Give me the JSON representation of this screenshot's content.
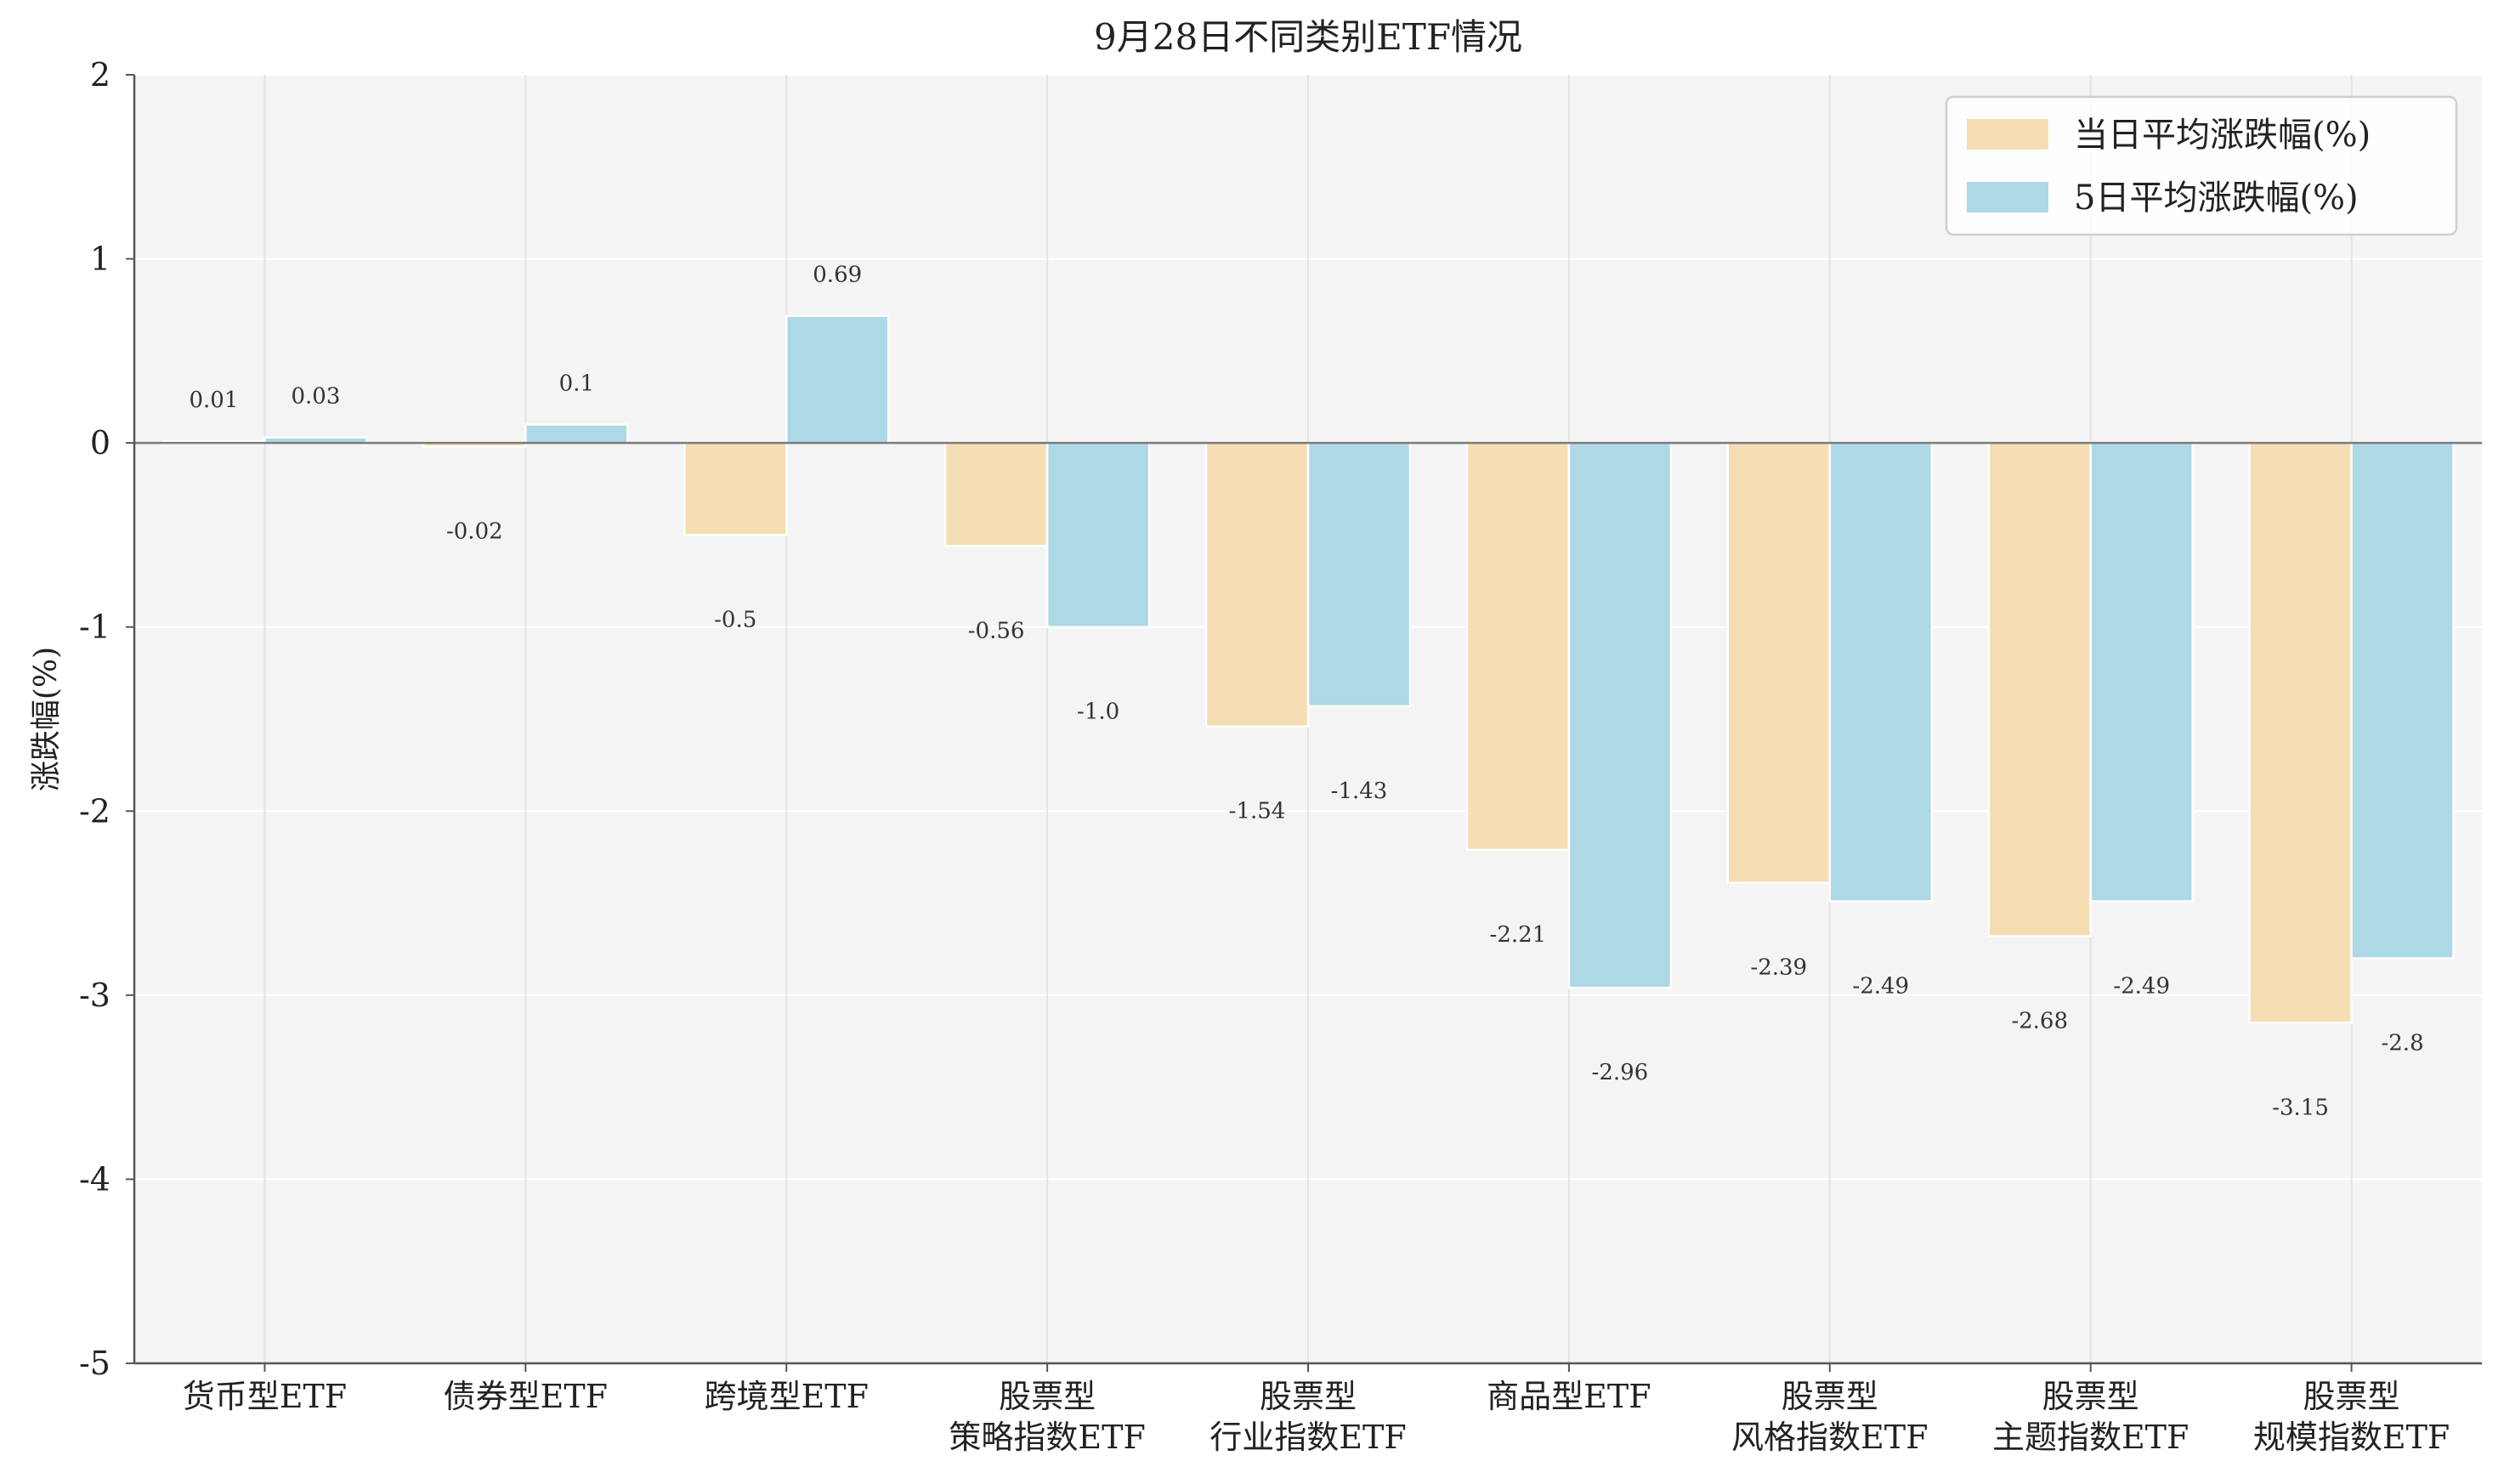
{
  "chart_data": {
    "type": "bar",
    "title": "9月28日不同类别ETF情况",
    "xlabel": "",
    "ylabel": "涨跌幅(%)",
    "ylim": [
      -5,
      2
    ],
    "yticks": [
      2,
      1,
      0,
      -1,
      -2,
      -3,
      -4,
      -5
    ],
    "categories": [
      [
        "货币型ETF"
      ],
      [
        "债券型ETF"
      ],
      [
        "跨境型ETF"
      ],
      [
        "股票型",
        "策略指数ETF"
      ],
      [
        "股票型",
        "行业指数ETF"
      ],
      [
        "商品型ETF"
      ],
      [
        "股票型",
        "风格指数ETF"
      ],
      [
        "股票型",
        "主题指数ETF"
      ],
      [
        "股票型",
        "规模指数ETF"
      ]
    ],
    "series": [
      {
        "name": "当日平均涨跌幅(%)",
        "color": "#f5deb3",
        "values": [
          0.01,
          -0.02,
          -0.5,
          -0.56,
          -1.54,
          -2.21,
          -2.39,
          -2.68,
          -3.15
        ],
        "labels": [
          "0.01",
          "-0.02",
          "-0.5",
          "-0.56",
          "-1.54",
          "-2.21",
          "-2.39",
          "-2.68",
          "-3.15"
        ]
      },
      {
        "name": "5日平均涨跌幅(%)",
        "color": "#add8e6",
        "values": [
          0.03,
          0.1,
          0.69,
          -1.0,
          -1.43,
          -2.96,
          -2.49,
          -2.49,
          -2.8
        ],
        "labels": [
          "0.03",
          "0.1",
          "0.69",
          "-1.0",
          "-1.43",
          "-2.96",
          "-2.49",
          "-2.49",
          "-2.8"
        ]
      }
    ],
    "grid": true,
    "legend": "top-right"
  }
}
